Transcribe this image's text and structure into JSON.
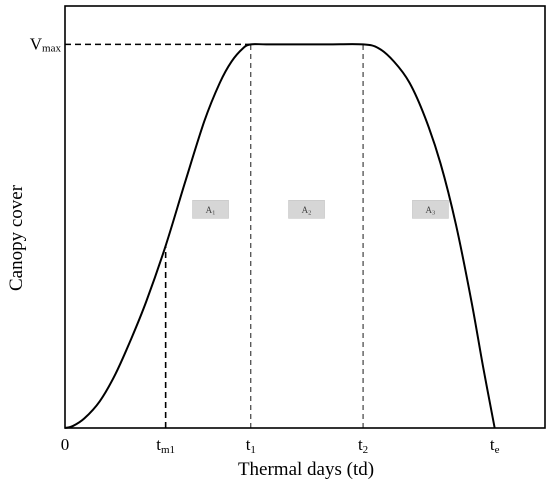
{
  "chart_data": {
    "type": "line",
    "title": "",
    "xlabel": "Thermal days (td)",
    "ylabel": "Canopy cover",
    "xlim": [
      0,
      6.2
    ],
    "ylim": [
      0,
      1.1
    ],
    "grid": false,
    "legend": "none",
    "x_ticks": [
      {
        "x": 0,
        "main": "0",
        "sub": ""
      },
      {
        "x": 1.3,
        "main": "t",
        "sub": "m1"
      },
      {
        "x": 2.4,
        "main": "t",
        "sub": "1"
      },
      {
        "x": 3.85,
        "main": "t",
        "sub": "2"
      },
      {
        "x": 5.55,
        "main": "t",
        "sub": "e"
      }
    ],
    "y_ticks": [
      {
        "y": 1.0,
        "main": "V",
        "sub": "max"
      }
    ],
    "series": [
      {
        "x": [
          0,
          0.1,
          0.25,
          0.45,
          0.65,
          0.85,
          1.05,
          1.3,
          1.55,
          1.8,
          2.0,
          2.15,
          2.3,
          2.4,
          2.6,
          3.0,
          3.4,
          3.85,
          4.05,
          4.25,
          4.45,
          4.65,
          4.85,
          5.05,
          5.25,
          5.4,
          5.55
        ],
        "y": [
          0,
          0.005,
          0.025,
          0.07,
          0.14,
          0.23,
          0.33,
          0.475,
          0.64,
          0.8,
          0.9,
          0.955,
          0.99,
          1.0,
          1.0,
          1.0,
          1.0,
          1.0,
          0.99,
          0.955,
          0.9,
          0.81,
          0.69,
          0.53,
          0.33,
          0.16,
          0.0
        ]
      }
    ],
    "guides": [
      {
        "kind": "vertical",
        "x": 1.3,
        "y_to": 0.475,
        "style": "dashed-bold"
      },
      {
        "kind": "vertical",
        "x": 2.4,
        "y_to": 1.0,
        "style": "dashed"
      },
      {
        "kind": "vertical",
        "x": 3.85,
        "y_to": 1.0,
        "style": "dashed"
      },
      {
        "kind": "horizontal",
        "y": 1.0,
        "x_to": 2.4,
        "style": "dashed-bold"
      }
    ],
    "annotations": [
      {
        "x": 1.88,
        "y": 0.57,
        "main": "A",
        "sub": "1"
      },
      {
        "x": 3.12,
        "y": 0.57,
        "main": "A",
        "sub": "2"
      },
      {
        "x": 4.72,
        "y": 0.57,
        "main": "A",
        "sub": "3"
      }
    ],
    "colors": {
      "line": "#000000",
      "annotation_box": "#d6d6d6"
    }
  }
}
